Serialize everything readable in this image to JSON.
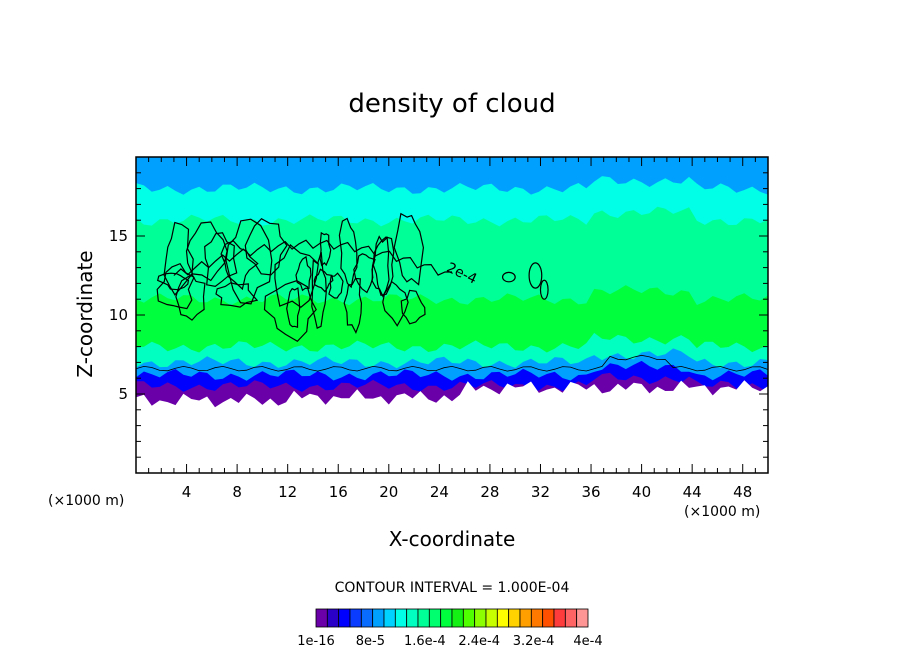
{
  "chart_data": {
    "type": "heatmap",
    "title": "density of cloud",
    "xlabel": "X-coordinate",
    "ylabel": "Z-coordinate",
    "x_unit": "(×1000 m)",
    "z_unit": "(×1000 m)",
    "xlim": [
      0,
      50
    ],
    "ylim": [
      0,
      20
    ],
    "x_ticks": [
      4,
      8,
      12,
      16,
      20,
      24,
      28,
      32,
      36,
      40,
      44,
      48
    ],
    "y_ticks": [
      5,
      10,
      15
    ],
    "contour_interval_text": "CONTOUR INTERVAL = 1.000E-04",
    "contour_label": "2e-4",
    "colorbar_labels": [
      "1e-16",
      "8e-5",
      "1.6e-4",
      "2.4e-4",
      "3.2e-4",
      "4e-4"
    ],
    "colorbar_colors": [
      "#6a00a8",
      "#2a00c8",
      "#0000ff",
      "#0a3cff",
      "#0a6cff",
      "#00a0ff",
      "#00d2ff",
      "#00ffe6",
      "#00ffc0",
      "#00ff96",
      "#00ff6e",
      "#00ff3c",
      "#14f014",
      "#50ff00",
      "#8cff00",
      "#c8ff00",
      "#ffff00",
      "#ffd200",
      "#ffa000",
      "#ff7800",
      "#ff5000",
      "#ff3c3c",
      "#ff6464",
      "#ff9696"
    ],
    "band_profile": [
      {
        "z": 19.5,
        "value": 9e-05
      },
      {
        "z": 18.0,
        "value": 0.00012
      },
      {
        "z": 16.0,
        "value": 0.00016
      },
      {
        "z": 11.0,
        "value": 0.00019
      },
      {
        "z": 8.0,
        "value": 0.00015
      },
      {
        "z": 7.0,
        "value": 9e-05
      },
      {
        "z": 6.2,
        "value": 4e-05
      },
      {
        "z": 5.5,
        "value": 1e-06
      }
    ],
    "contour_region": {
      "x_min": 3,
      "x_max": 24,
      "z_min": 8.5,
      "z_max": 14.5,
      "level": 0.0002
    }
  }
}
